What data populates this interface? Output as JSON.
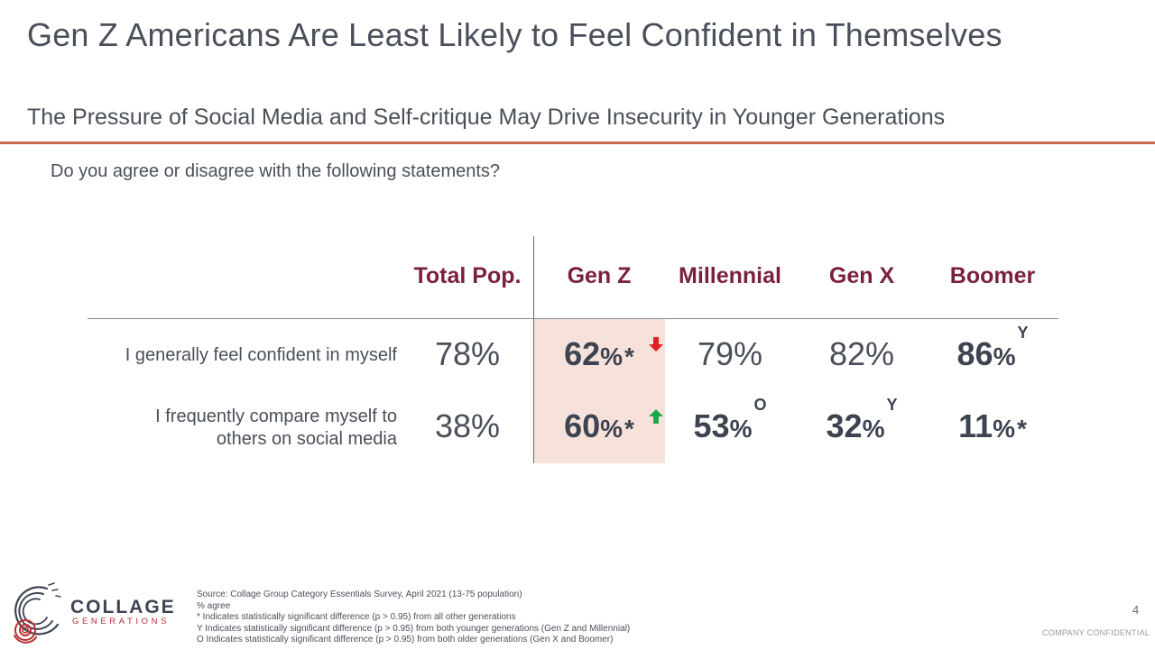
{
  "title": "Gen Z Americans Are Least Likely to Feel Confident in Themselves",
  "subtitle": "The Pressure of Social Media and Self-critique May Drive Insecurity in Younger Generations",
  "question": "Do you agree or disagree with the following statements?",
  "columns": [
    "Total Pop.",
    "Gen Z",
    "Millennial",
    "Gen X",
    "Boomer"
  ],
  "rows": [
    {
      "label_lines": [
        "I generally feel confident in myself"
      ],
      "cells": [
        {
          "value": "78",
          "pct": "%",
          "mark": "",
          "bold": false
        },
        {
          "value": "62",
          "pct": "%",
          "mark": "*",
          "bold": true,
          "arrow": "down"
        },
        {
          "value": "79",
          "pct": "%",
          "mark": "",
          "bold": false
        },
        {
          "value": "82",
          "pct": "%",
          "mark": "",
          "bold": false
        },
        {
          "value": "86",
          "pct": "%",
          "mark": "Y",
          "bold": true
        }
      ]
    },
    {
      "label_lines": [
        "I frequently compare myself to",
        "others on social media"
      ],
      "cells": [
        {
          "value": "38",
          "pct": "%",
          "mark": "",
          "bold": false
        },
        {
          "value": "60",
          "pct": "%",
          "mark": "*",
          "bold": true,
          "arrow": "up"
        },
        {
          "value": "53",
          "pct": "%",
          "mark": "O",
          "bold": true
        },
        {
          "value": "32",
          "pct": "%",
          "mark": "Y",
          "bold": true
        },
        {
          "value": "11",
          "pct": "%",
          "mark": "*",
          "bold": true
        }
      ]
    }
  ],
  "arrow_colors": {
    "down": "#e02020",
    "up": "#1fa84a"
  },
  "highlight_column": "Gen Z",
  "footnotes": [
    "Source: Collage Group Category Essentials Survey, April 2021 (13-75 population)",
    "% agree",
    "* Indicates statistically significant difference (p > 0.95) from all other generations",
    "Y Indicates statistically significant difference (p > 0.95) from both younger generations (Gen Z and Millennial)",
    "O Indicates statistically significant difference (p > 0.95) from both older generations (Gen X and Boomer)"
  ],
  "logo": {
    "line1": "COLLAGE",
    "line2": "GENERATIONS"
  },
  "page_number": "4",
  "confidential": "COMPANY CONFIDENTIAL"
}
